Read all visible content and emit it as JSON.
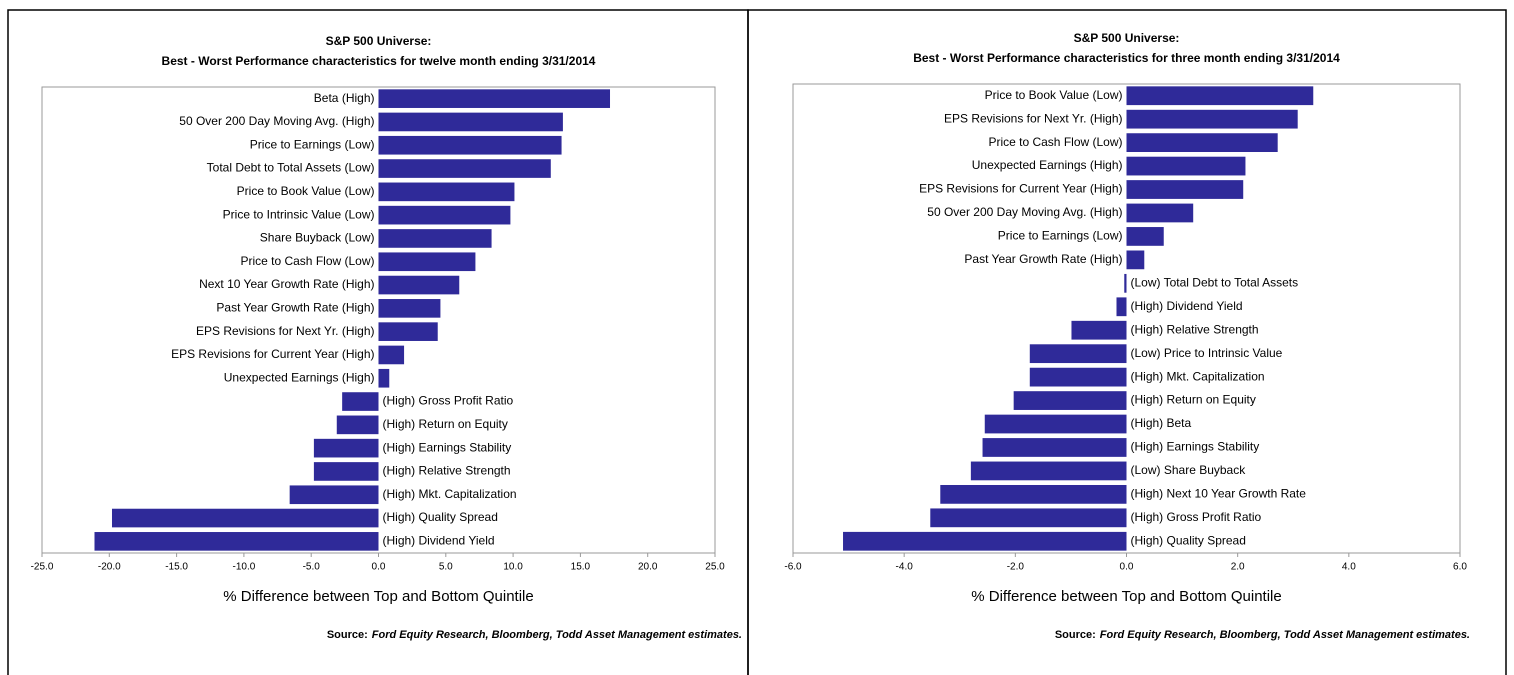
{
  "chart_data": [
    {
      "type": "barh",
      "title": "S&P 500 Universe:",
      "subtitle": "Best - Worst Performance characteristics for twelve month ending 3/31/2014",
      "xlabel": "% Difference between Top and Bottom Quintile",
      "source_label": "Source:",
      "source": "Ford Equity Research, Bloomberg, Todd Asset Management estimates.",
      "color": "#2f2a99",
      "categories": [
        "Beta (High)",
        "50 Over 200 Day Moving Avg. (High)",
        "Price to Earnings (Low)",
        "Total Debt to Total Assets (Low)",
        "Price to Book Value (Low)",
        "Price to Intrinsic Value (Low)",
        "Share Buyback (Low)",
        "Price to Cash Flow (Low)",
        "Next 10 Year Growth Rate (High)",
        "Past Year Growth Rate (High)",
        "EPS Revisions for Next Yr. (High)",
        "EPS Revisions for Current Year (High)",
        "Unexpected Earnings (High)",
        "(High) Gross Profit Ratio",
        "(High) Return on Equity",
        "(High) Earnings Stability",
        "(High) Relative Strength",
        "(High) Mkt. Capitalization",
        "(High) Quality Spread",
        "(High) Dividend Yield"
      ],
      "values": [
        17.2,
        13.7,
        13.6,
        12.8,
        10.1,
        9.8,
        8.4,
        7.2,
        6.0,
        4.6,
        4.4,
        1.9,
        0.8,
        -2.7,
        -3.1,
        -4.8,
        -4.8,
        -6.6,
        -19.8,
        -21.1
      ],
      "xlim": [
        -25,
        25
      ],
      "xticks": [
        {
          "value": -25,
          "label": "-25.0"
        },
        {
          "value": -20,
          "label": "-20.0"
        },
        {
          "value": -15,
          "label": "-15.0"
        },
        {
          "value": -10,
          "label": "-10.0"
        },
        {
          "value": -5,
          "label": "-5.0"
        },
        {
          "value": 0,
          "label": "0.0"
        },
        {
          "value": 5,
          "label": "5.0"
        },
        {
          "value": 10,
          "label": "10.0"
        },
        {
          "value": 15,
          "label": "15.0"
        },
        {
          "value": 20,
          "label": "20.0"
        },
        {
          "value": 25,
          "label": "25.0"
        }
      ]
    },
    {
      "type": "barh",
      "title": "S&P 500 Universe:",
      "subtitle": "Best - Worst Performance characteristics for three month ending 3/31/2014",
      "xlabel": "% Difference between Top and Bottom Quintile",
      "source_label": "Source:",
      "source": "Ford Equity Research, Bloomberg, Todd Asset Management estimates.",
      "color": "#2f2a99",
      "categories": [
        "Price to Book Value (Low)",
        "EPS Revisions for Next Yr. (High)",
        "Price to Cash Flow (Low)",
        "Unexpected Earnings (High)",
        "EPS Revisions for Current Year (High)",
        "50 Over 200 Day Moving Avg. (High)",
        "Price to Earnings (Low)",
        "Past Year Growth Rate (High)",
        "(Low) Total Debt to Total Assets",
        "(High) Dividend Yield",
        "(High) Relative Strength",
        "(Low) Price to Intrinsic Value",
        "(High) Mkt. Capitalization",
        "(High) Return on Equity",
        "(High) Beta",
        "(High) Earnings Stability",
        "(Low) Share Buyback",
        "(High) Next 10 Year Growth Rate",
        "(High) Gross Profit Ratio",
        "(High) Quality Spread"
      ],
      "values": [
        3.36,
        3.08,
        2.72,
        2.14,
        2.1,
        1.2,
        0.67,
        0.32,
        -0.04,
        -0.18,
        -0.99,
        -1.74,
        -1.74,
        -2.03,
        -2.55,
        -2.59,
        -2.8,
        -3.35,
        -3.53,
        -5.1
      ],
      "xlim": [
        -6,
        6
      ],
      "xticks": [
        {
          "value": -6,
          "label": "-6.0"
        },
        {
          "value": -4,
          "label": "-4.0"
        },
        {
          "value": -2,
          "label": "-2.0"
        },
        {
          "value": 0,
          "label": "0.0"
        },
        {
          "value": 2,
          "label": "2.0"
        },
        {
          "value": 4,
          "label": "4.0"
        },
        {
          "value": 6,
          "label": "6.0"
        }
      ]
    }
  ]
}
